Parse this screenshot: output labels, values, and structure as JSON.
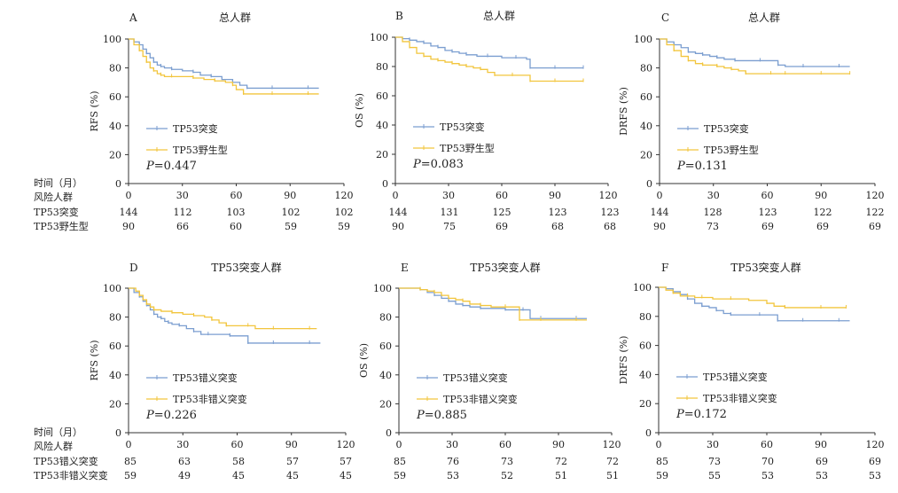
{
  "colors": {
    "mutant": "#7b9ed0",
    "wild": "#f2c53d",
    "axis": "#333333"
  },
  "row_labels": {
    "time": "时间（月）",
    "risk": "风险人群",
    "row1_group1": "TP53突变",
    "row1_group2": "TP53野生型",
    "row2_group1": "TP53错义突变",
    "row2_group2": "TP53非错义突变"
  },
  "chart_data": [
    {
      "type": "line",
      "panel": "A",
      "title": "总人群",
      "ylabel": "RFS (%)",
      "xlim": [
        0,
        120
      ],
      "ylim": [
        0,
        100
      ],
      "xticks": [
        "0",
        "30",
        "60",
        "90",
        "120"
      ],
      "yticks": [
        "0",
        "20",
        "40",
        "60",
        "80",
        "100"
      ],
      "pvalue_prefix": "P",
      "pvalue_rest": "=0.447",
      "series": [
        {
          "name": "TP53突变",
          "color_key": "mutant",
          "x": [
            0,
            3,
            6,
            8,
            10,
            12,
            14,
            16,
            18,
            20,
            24,
            30,
            36,
            40,
            46,
            52,
            58,
            62,
            66,
            70,
            80,
            90,
            100,
            106
          ],
          "y": [
            100,
            98,
            96,
            93,
            90,
            87,
            84,
            82,
            81,
            80,
            79,
            78,
            77,
            75,
            74,
            72,
            70,
            68,
            66,
            66,
            66,
            66,
            66,
            66
          ],
          "risk": [
            "144",
            "112",
            "103",
            "102",
            "102"
          ]
        },
        {
          "name": "TP53野生型",
          "color_key": "wild",
          "x": [
            0,
            3,
            6,
            8,
            10,
            12,
            14,
            16,
            18,
            20,
            24,
            30,
            36,
            42,
            48,
            54,
            58,
            60,
            64,
            70,
            80,
            90,
            100,
            106
          ],
          "y": [
            100,
            96,
            92,
            88,
            84,
            80,
            78,
            76,
            75,
            74,
            74,
            74,
            73,
            72,
            71,
            70,
            68,
            65,
            62,
            62,
            62,
            62,
            62,
            62
          ],
          "risk": [
            "90",
            "66",
            "60",
            "59",
            "59"
          ]
        }
      ]
    },
    {
      "type": "line",
      "panel": "B",
      "title": "总人群",
      "ylabel": "OS (%)",
      "xlim": [
        0,
        120
      ],
      "ylim": [
        0,
        100
      ],
      "xticks": [
        "0",
        "30",
        "60",
        "90",
        "120"
      ],
      "yticks": [
        "0",
        "20",
        "40",
        "60",
        "80",
        "100"
      ],
      "pvalue_prefix": "P",
      "pvalue_rest": "=0.083",
      "series": [
        {
          "name": "TP53突变",
          "color_key": "mutant",
          "x": [
            0,
            4,
            8,
            12,
            16,
            20,
            24,
            28,
            32,
            36,
            40,
            46,
            52,
            60,
            68,
            74,
            76,
            80,
            90,
            100,
            106
          ],
          "y": [
            100,
            99,
            98,
            97,
            96,
            94,
            93,
            91,
            90,
            89,
            88,
            87,
            87,
            86,
            86,
            85,
            79,
            79,
            79,
            79,
            79
          ],
          "risk": [
            "144",
            "131",
            "125",
            "123",
            "123"
          ]
        },
        {
          "name": "TP53野生型",
          "color_key": "wild",
          "x": [
            0,
            4,
            8,
            12,
            16,
            20,
            24,
            28,
            32,
            36,
            40,
            44,
            48,
            52,
            56,
            60,
            66,
            72,
            76,
            80,
            90,
            100,
            106
          ],
          "y": [
            100,
            97,
            93,
            89,
            87,
            85,
            84,
            83,
            82,
            81,
            80,
            79,
            78,
            76,
            74,
            74,
            74,
            74,
            70,
            70,
            70,
            70,
            70
          ],
          "risk": [
            "90",
            "75",
            "69",
            "68",
            "68"
          ]
        }
      ]
    },
    {
      "type": "line",
      "panel": "C",
      "title": "总人群",
      "ylabel": "DRFS (%)",
      "xlim": [
        0,
        120
      ],
      "ylim": [
        0,
        100
      ],
      "xticks": [
        "0",
        "30",
        "60",
        "90",
        "120"
      ],
      "yticks": [
        "0",
        "20",
        "40",
        "60",
        "80",
        "100"
      ],
      "pvalue_prefix": "P",
      "pvalue_rest": "=0.131",
      "series": [
        {
          "name": "TP53突变",
          "color_key": "mutant",
          "x": [
            0,
            4,
            8,
            12,
            16,
            20,
            24,
            28,
            32,
            36,
            42,
            48,
            56,
            62,
            66,
            70,
            80,
            90,
            100,
            106
          ],
          "y": [
            100,
            98,
            96,
            94,
            91,
            90,
            89,
            88,
            87,
            86,
            85,
            85,
            85,
            85,
            82,
            81,
            81,
            81,
            81,
            81
          ],
          "risk": [
            "144",
            "128",
            "123",
            "122",
            "122"
          ]
        },
        {
          "name": "TP53野生型",
          "color_key": "wild",
          "x": [
            0,
            4,
            8,
            12,
            16,
            20,
            24,
            28,
            32,
            36,
            40,
            44,
            48,
            56,
            62,
            66,
            70,
            80,
            90,
            100,
            106
          ],
          "y": [
            100,
            96,
            92,
            88,
            85,
            83,
            82,
            82,
            81,
            80,
            79,
            78,
            76,
            76,
            76,
            76,
            76,
            76,
            76,
            76,
            76
          ],
          "risk": [
            "90",
            "73",
            "69",
            "69",
            "69"
          ]
        }
      ]
    },
    {
      "type": "line",
      "panel": "D",
      "title": "TP53突变人群",
      "ylabel": "RFS (%)",
      "xlim": [
        0,
        120
      ],
      "ylim": [
        0,
        100
      ],
      "xticks": [
        "0",
        "30",
        "60",
        "90",
        "120"
      ],
      "yticks": [
        "0",
        "20",
        "40",
        "60",
        "80",
        "100"
      ],
      "pvalue_prefix": "P",
      "pvalue_rest": "=0.226",
      "series": [
        {
          "name": "TP53错义突变",
          "color_key": "mutant",
          "x": [
            0,
            3,
            6,
            8,
            10,
            12,
            14,
            16,
            18,
            20,
            22,
            24,
            28,
            32,
            36,
            40,
            44,
            50,
            56,
            62,
            66,
            70,
            80,
            90,
            100,
            106
          ],
          "y": [
            100,
            97,
            94,
            91,
            88,
            85,
            82,
            80,
            79,
            77,
            76,
            75,
            74,
            72,
            70,
            68,
            68,
            68,
            67,
            67,
            62,
            62,
            62,
            62,
            62,
            62
          ],
          "risk": [
            "85",
            "63",
            "58",
            "57",
            "57"
          ]
        },
        {
          "name": "TP53非错义突变",
          "color_key": "wild",
          "x": [
            0,
            4,
            6,
            8,
            10,
            12,
            14,
            18,
            24,
            30,
            36,
            42,
            46,
            50,
            54,
            60,
            66,
            70,
            80,
            90,
            100,
            104
          ],
          "y": [
            100,
            98,
            95,
            92,
            89,
            87,
            85,
            84,
            83,
            82,
            81,
            80,
            78,
            76,
            74,
            74,
            74,
            72,
            72,
            72,
            72,
            72
          ],
          "risk": [
            "59",
            "49",
            "45",
            "45",
            "45"
          ]
        }
      ]
    },
    {
      "type": "line",
      "panel": "E",
      "title": "TP53突变人群",
      "ylabel": "OS (%)",
      "xlim": [
        0,
        120
      ],
      "ylim": [
        0,
        100
      ],
      "xticks": [
        "0",
        "30",
        "60",
        "90",
        "120"
      ],
      "yticks": [
        "0",
        "20",
        "40",
        "60",
        "80",
        "100"
      ],
      "pvalue_prefix": "P",
      "pvalue_rest": "=0.885",
      "series": [
        {
          "name": "TP53错义突变",
          "color_key": "mutant",
          "x": [
            0,
            6,
            12,
            16,
            20,
            24,
            28,
            32,
            36,
            40,
            46,
            52,
            60,
            66,
            70,
            74,
            80,
            90,
            100,
            106
          ],
          "y": [
            100,
            100,
            99,
            97,
            95,
            93,
            91,
            89,
            88,
            87,
            86,
            86,
            85,
            85,
            85,
            79,
            79,
            79,
            79,
            79
          ],
          "risk": [
            "85",
            "76",
            "73",
            "72",
            "72"
          ]
        },
        {
          "name": "TP53非错义突变",
          "color_key": "wild",
          "x": [
            0,
            6,
            12,
            16,
            20,
            24,
            28,
            32,
            36,
            40,
            46,
            52,
            60,
            66,
            68,
            72,
            80,
            90,
            100,
            106
          ],
          "y": [
            100,
            100,
            99,
            98,
            97,
            95,
            93,
            92,
            91,
            89,
            88,
            87,
            87,
            87,
            78,
            78,
            78,
            78,
            78,
            78
          ],
          "risk": [
            "59",
            "53",
            "52",
            "51",
            "51"
          ]
        }
      ]
    },
    {
      "type": "line",
      "panel": "F",
      "title": "TP53突变人群",
      "ylabel": "DRFS (%)",
      "xlim": [
        0,
        120
      ],
      "ylim": [
        0,
        100
      ],
      "xticks": [
        "0",
        "30",
        "60",
        "90",
        "120"
      ],
      "yticks": [
        "0",
        "20",
        "40",
        "60",
        "80",
        "100"
      ],
      "pvalue_prefix": "P",
      "pvalue_rest": "=0.172",
      "series": [
        {
          "name": "TP53错义突变",
          "color_key": "mutant",
          "x": [
            0,
            4,
            8,
            12,
            16,
            20,
            24,
            28,
            32,
            36,
            40,
            46,
            56,
            62,
            66,
            70,
            80,
            90,
            100,
            106
          ],
          "y": [
            100,
            99,
            97,
            95,
            92,
            89,
            87,
            86,
            84,
            82,
            81,
            81,
            81,
            81,
            77,
            77,
            77,
            77,
            77,
            77
          ],
          "risk": [
            "85",
            "73",
            "70",
            "69",
            "69"
          ]
        },
        {
          "name": "TP53非错义突变",
          "color_key": "wild",
          "x": [
            0,
            4,
            8,
            12,
            16,
            20,
            24,
            30,
            40,
            50,
            60,
            64,
            70,
            80,
            90,
            100,
            104
          ],
          "y": [
            100,
            98,
            96,
            94,
            94,
            93,
            93,
            92,
            92,
            91,
            89,
            87,
            86,
            86,
            86,
            86,
            86
          ],
          "risk": [
            "59",
            "55",
            "53",
            "53",
            "53"
          ]
        }
      ]
    }
  ]
}
